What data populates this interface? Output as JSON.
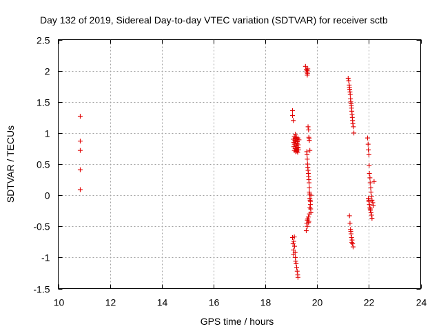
{
  "chart_data": {
    "type": "scatter",
    "title": "Day 132 of 2019, Sidereal Day-to-day VTEC variation (SDTVAR) for receiver sctb",
    "xlabel": "GPS time / hours",
    "ylabel": "SDTVAR / TECUs",
    "xlim": [
      10,
      24
    ],
    "ylim": [
      -1.5,
      2.5
    ],
    "x_ticks": [
      10,
      12,
      14,
      16,
      18,
      20,
      22,
      24
    ],
    "y_ticks": [
      -1.5,
      -1,
      -0.5,
      0,
      0.5,
      1,
      1.5,
      2,
      2.5
    ],
    "x_tick_labels": [
      "10",
      "12",
      "14",
      "16",
      "18",
      "20",
      "22",
      "24"
    ],
    "y_tick_labels": [
      "-1.5",
      "-1",
      "-0.5",
      "0",
      "0.5",
      "1",
      "1.5",
      "2",
      "2.5"
    ],
    "grid": true,
    "marker": "+",
    "color": "#e00000",
    "series": [
      {
        "name": "SDTVAR",
        "x": [
          10.85,
          10.85,
          10.85,
          10.85,
          10.85,
          19.05,
          19.05,
          19.08,
          19.08,
          19.1,
          19.1,
          19.12,
          19.12,
          19.12,
          19.14,
          19.15,
          19.15,
          19.16,
          19.17,
          19.18,
          19.18,
          19.19,
          19.2,
          19.2,
          19.21,
          19.22,
          19.22,
          19.23,
          19.24,
          19.25,
          19.25,
          19.26,
          19.27,
          19.27,
          19.28,
          19.3,
          19.05,
          19.07,
          19.08,
          19.09,
          19.1,
          19.12,
          19.13,
          19.15,
          19.16,
          19.17,
          19.19,
          19.21,
          19.23,
          19.25,
          19.26,
          19.55,
          19.58,
          19.6,
          19.62,
          19.62,
          19.63,
          19.64,
          19.65,
          19.67,
          19.68,
          19.69,
          19.7,
          19.72,
          19.6,
          19.61,
          19.62,
          19.63,
          19.64,
          19.65,
          19.66,
          19.67,
          19.68,
          19.69,
          19.7,
          19.7,
          19.71,
          19.72,
          19.73,
          19.74,
          19.75,
          19.76,
          19.58,
          19.6,
          19.62,
          19.64,
          19.66,
          19.68,
          19.7,
          19.72,
          19.74,
          19.76,
          19.62,
          19.67,
          21.2,
          21.22,
          21.24,
          21.25,
          21.26,
          21.27,
          21.28,
          21.29,
          21.3,
          21.31,
          21.32,
          21.33,
          21.34,
          21.35,
          21.36,
          21.37,
          21.38,
          21.4,
          21.42,
          21.25,
          21.27,
          21.29,
          21.31,
          21.33,
          21.35,
          21.37,
          21.39,
          21.3,
          21.34,
          21.95,
          21.97,
          21.98,
          22.0,
          22.01,
          22.02,
          22.04,
          22.05,
          22.07,
          22.08,
          22.1,
          22.12,
          22.15,
          22.17,
          22.2,
          21.98,
          22.0,
          22.02,
          22.04,
          22.06,
          22.08,
          22.1,
          22.12,
          22.0,
          22.05
        ],
        "y": [
          1.27,
          0.87,
          0.72,
          0.41,
          0.09,
          1.36,
          1.28,
          1.2,
          0.9,
          0.85,
          0.78,
          0.82,
          0.94,
          0.72,
          0.88,
          0.75,
          0.91,
          0.98,
          0.7,
          0.87,
          0.84,
          0.8,
          0.79,
          0.93,
          0.74,
          0.9,
          0.71,
          0.83,
          0.86,
          0.77,
          0.69,
          0.92,
          0.76,
          0.81,
          0.73,
          0.89,
          -0.68,
          -0.78,
          -0.88,
          -0.95,
          -0.74,
          -0.67,
          -0.82,
          -0.92,
          -1.0,
          -1.06,
          -1.1,
          -1.16,
          -1.22,
          -1.28,
          -1.32,
          2.07,
          2.02,
          1.98,
          1.93,
          2.0,
          1.96,
          2.03,
          1.1,
          1.05,
          0.93,
          0.91,
          0.88,
          0.72,
          0.7,
          0.65,
          0.58,
          0.5,
          0.45,
          0.4,
          0.35,
          0.3,
          0.25,
          0.2,
          0.12,
          0.05,
          0.02,
          -0.05,
          -0.08,
          -0.15,
          -0.22,
          -0.28,
          -0.57,
          -0.45,
          -0.4,
          -0.38,
          -0.35,
          -0.42,
          -0.3,
          -0.2,
          -0.1,
          0.0,
          -0.5,
          -0.44,
          1.88,
          1.84,
          1.77,
          1.73,
          1.7,
          1.66,
          1.62,
          1.55,
          1.5,
          1.47,
          1.44,
          1.4,
          1.35,
          1.3,
          1.25,
          1.2,
          1.15,
          1.1,
          1.0,
          -0.33,
          -0.45,
          -0.55,
          -0.62,
          -0.68,
          -0.72,
          -0.78,
          -0.83,
          -0.58,
          -0.76,
          0.92,
          0.82,
          0.73,
          0.65,
          0.48,
          0.35,
          0.28,
          0.2,
          0.12,
          0.05,
          -0.02,
          -0.08,
          -0.12,
          -0.17,
          0.22,
          -0.05,
          -0.1,
          -0.15,
          -0.2,
          -0.24,
          -0.28,
          -0.32,
          -0.37,
          -0.08,
          -0.22
        ]
      }
    ]
  }
}
